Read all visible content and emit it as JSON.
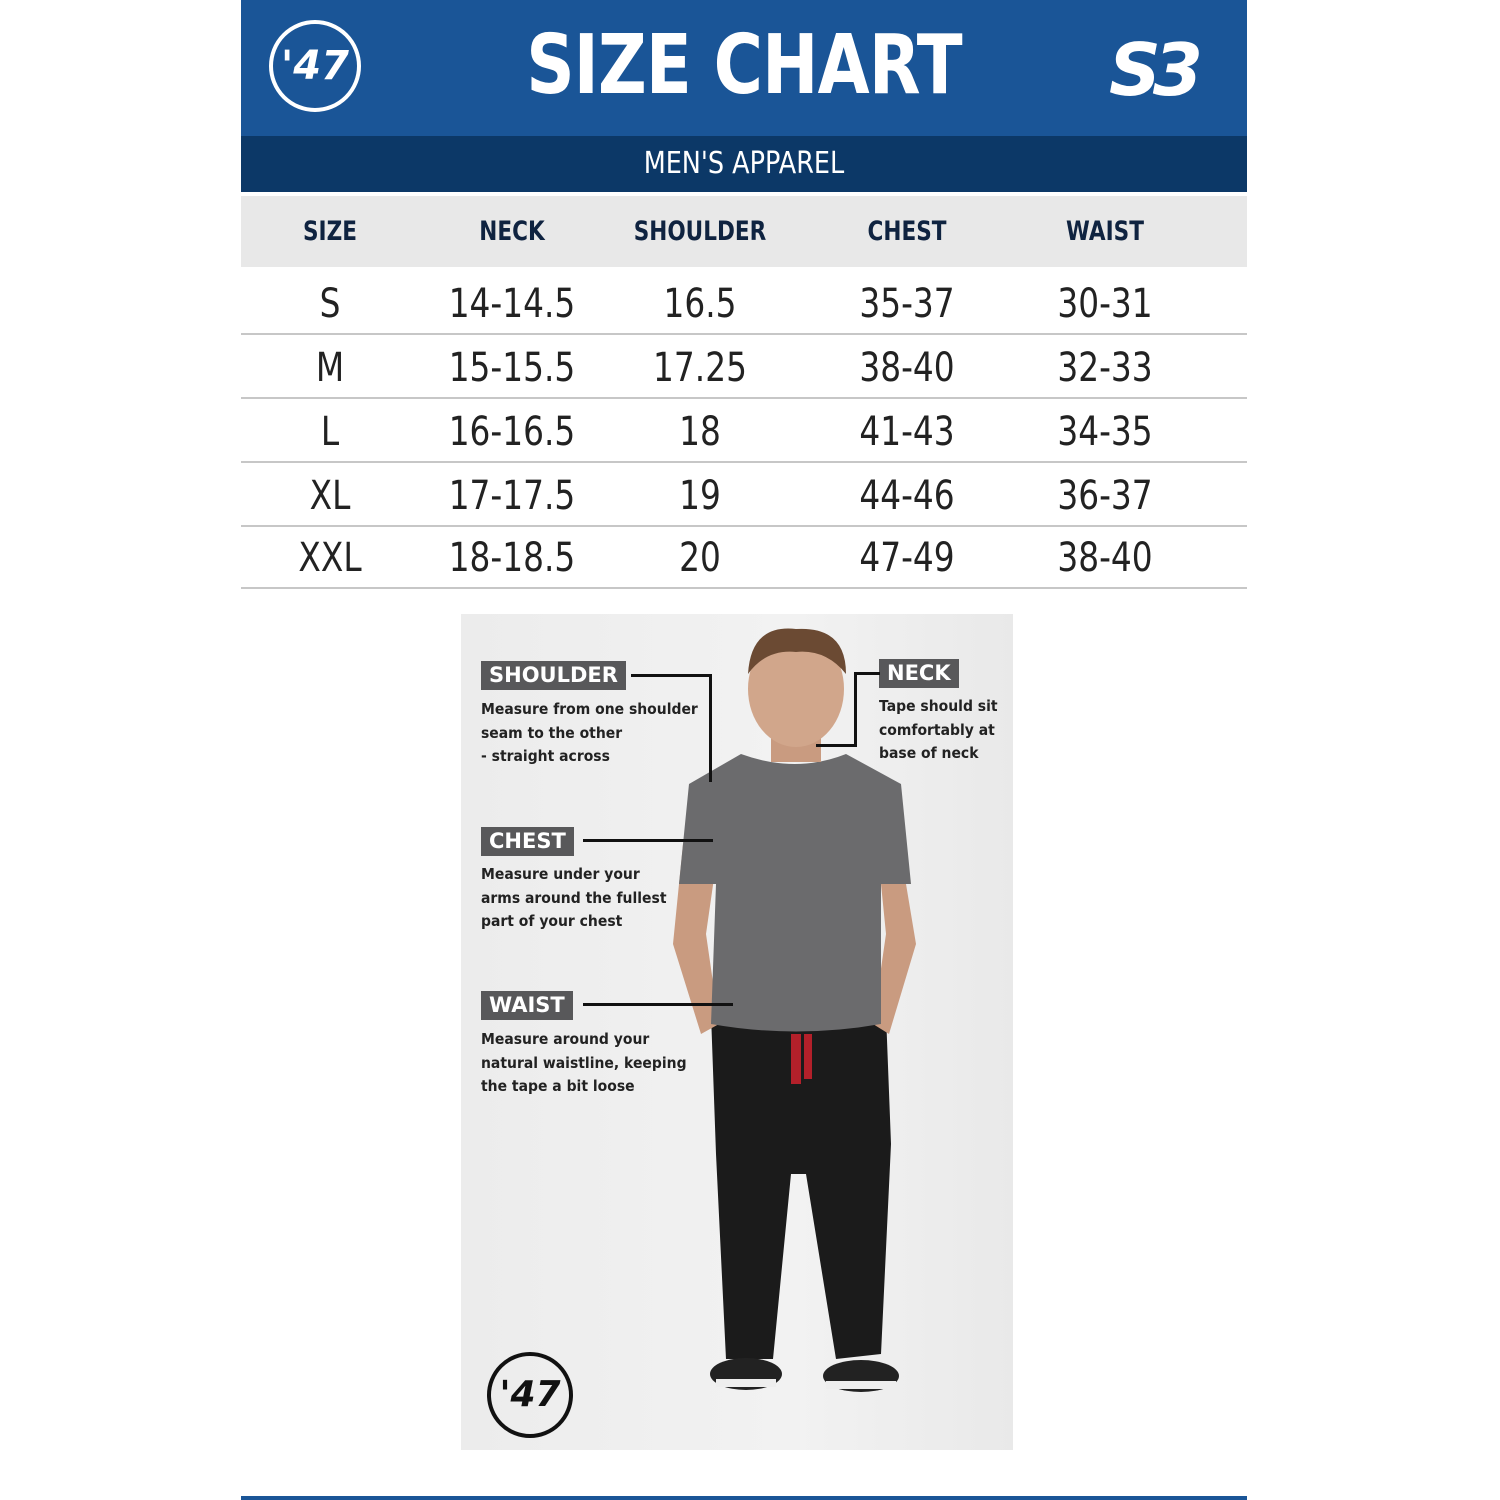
{
  "header": {
    "title": "SIZE CHART",
    "subtitle": "MEN'S APPAREL",
    "left_logo": "47",
    "right_logo": "S3",
    "brand_color": "#1a5597",
    "band_color": "#0c3867"
  },
  "table": {
    "columns": [
      "SIZE",
      "NECK",
      "SHOULDER",
      "CHEST",
      "WAIST"
    ],
    "rows": [
      [
        "S",
        "14-14.5",
        "16.5",
        "35-37",
        "30-31"
      ],
      [
        "M",
        "15-15.5",
        "17.25",
        "38-40",
        "32-33"
      ],
      [
        "L",
        "16-16.5",
        "18",
        "41-43",
        "34-35"
      ],
      [
        "XL",
        "17-17.5",
        "19",
        "44-46",
        "36-37"
      ],
      [
        "XXL",
        "18-18.5",
        "20",
        "47-49",
        "38-40"
      ]
    ]
  },
  "guide": {
    "shoulder": {
      "label": "SHOULDER",
      "lines": [
        "Measure from one shoulder",
        "seam to the other",
        "- straight across"
      ]
    },
    "neck": {
      "label": "NECK",
      "lines": [
        "Tape should sit",
        "comfortably at",
        "base of neck"
      ]
    },
    "chest": {
      "label": "CHEST",
      "lines": [
        "Measure under your",
        "arms around the fullest",
        "part of your chest"
      ]
    },
    "waist": {
      "label": "WAIST",
      "lines": [
        "Measure around your",
        "natural waistline, keeping",
        "the tape a bit loose"
      ]
    },
    "bottom_logo": "47"
  }
}
